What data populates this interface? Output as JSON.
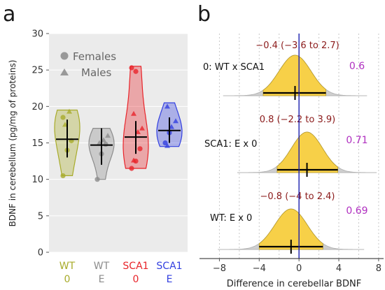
{
  "panel_a": {
    "letter": "a",
    "ylabel": "BDNF in cerebellum (pg/mg of proteins)",
    "legend": {
      "females": "Females",
      "males": "Males"
    }
  },
  "panel_b": {
    "letter": "b",
    "xlabel": "Difference in cerebellar BDNF"
  },
  "chart_data": [
    {
      "type": "violin",
      "title": "",
      "ylabel": "BDNF in cerebellum (pg/mg of proteins)",
      "ylim": [
        0,
        30
      ],
      "yticks": [
        0,
        5,
        10,
        15,
        20,
        25,
        30
      ],
      "grid": true,
      "legend_position": "top-left",
      "groups": [
        {
          "line1": "WT",
          "line2": "0",
          "color": "#a8ab2a",
          "min": 10.5,
          "max": 19.5,
          "mean": 15.5,
          "ci": [
            13.0,
            18.2
          ],
          "females": [
            10.5,
            14.0,
            15.3,
            18.5
          ],
          "males": [
            17.5,
            19.3
          ]
        },
        {
          "line1": "WT",
          "line2": "E",
          "color": "#8c8c8c",
          "min": 10.0,
          "max": 17.0,
          "mean": 14.7,
          "ci": [
            12.0,
            17.0
          ],
          "females": [
            10.0,
            13.5,
            14.8
          ],
          "males": [
            15.0,
            15.4,
            16.0
          ]
        },
        {
          "line1": "SCA1",
          "line2": "0",
          "color": "#e8242a",
          "min": 11.5,
          "max": 25.5,
          "mean": 15.8,
          "ci": [
            13.5,
            18.0
          ],
          "females": [
            11.5,
            12.5,
            14.2,
            25.3,
            24.8
          ],
          "males": [
            12.6,
            16.5,
            17.0,
            19.0
          ]
        },
        {
          "line1": "SCA1",
          "line2": "E",
          "color": "#3340e0",
          "min": 14.5,
          "max": 20.5,
          "mean": 16.7,
          "ci": [
            15.0,
            18.5
          ],
          "females": [
            15.0,
            16.4
          ],
          "males": [
            14.6,
            17.2,
            18.0,
            20.0
          ]
        }
      ]
    },
    {
      "type": "posterior_density",
      "xlabel": "Difference in cerebellar BDNF",
      "xlim": [
        -10,
        8.5
      ],
      "xticks": [
        -8,
        -4,
        0,
        4,
        8
      ],
      "xtick_labels": [
        "−8",
        "−4",
        "0",
        "4",
        "8"
      ],
      "reference_line": 0,
      "rows": [
        {
          "label": "0: WT x SCA1",
          "estimate": -0.4,
          "ci_low": -3.6,
          "ci_high": 2.7,
          "ci_text": "−0.4 (−3.6 to 2.7)",
          "probability": "0.6"
        },
        {
          "label": "SCA1: E x 0",
          "estimate": 0.8,
          "ci_low": -2.2,
          "ci_high": 3.9,
          "ci_text": "0.8 (−2.2 to 3.9)",
          "probability": "0.71"
        },
        {
          "label": "WT: E x 0",
          "estimate": -0.8,
          "ci_low": -4.0,
          "ci_high": 2.4,
          "ci_text": "−0.8 (−4 to 2.4)",
          "probability": "0.69"
        }
      ]
    }
  ]
}
